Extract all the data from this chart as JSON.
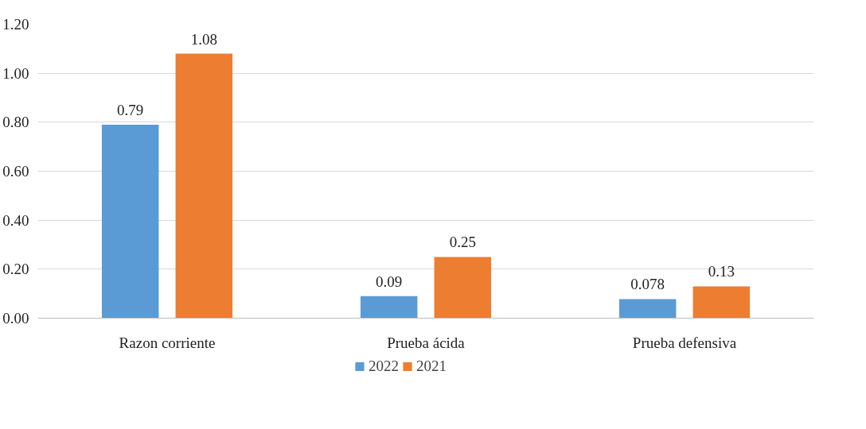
{
  "chart_data": {
    "type": "bar",
    "categories": [
      "Razon corriente",
      "Prueba ácida",
      "Prueba defensiva"
    ],
    "series": [
      {
        "name": "2022",
        "color": "#5b9bd5",
        "values": [
          0.79,
          0.09,
          0.078
        ]
      },
      {
        "name": "2021",
        "color": "#ed7d31",
        "values": [
          1.08,
          0.25,
          0.13
        ]
      }
    ],
    "ylim": [
      0,
      1.2
    ],
    "yticks": [
      {
        "value": 0,
        "label": "0.00"
      },
      {
        "value": 0.2,
        "label": "0.20"
      },
      {
        "value": 0.4,
        "label": "0.40"
      },
      {
        "value": 0.6,
        "label": "0.60"
      },
      {
        "value": 0.8,
        "label": "0.80"
      },
      {
        "value": 1.0,
        "label": "1.00"
      },
      {
        "value": 1.2,
        "label": "1.20"
      }
    ],
    "grid": "y",
    "legend": "bottom",
    "data_labels": true
  }
}
